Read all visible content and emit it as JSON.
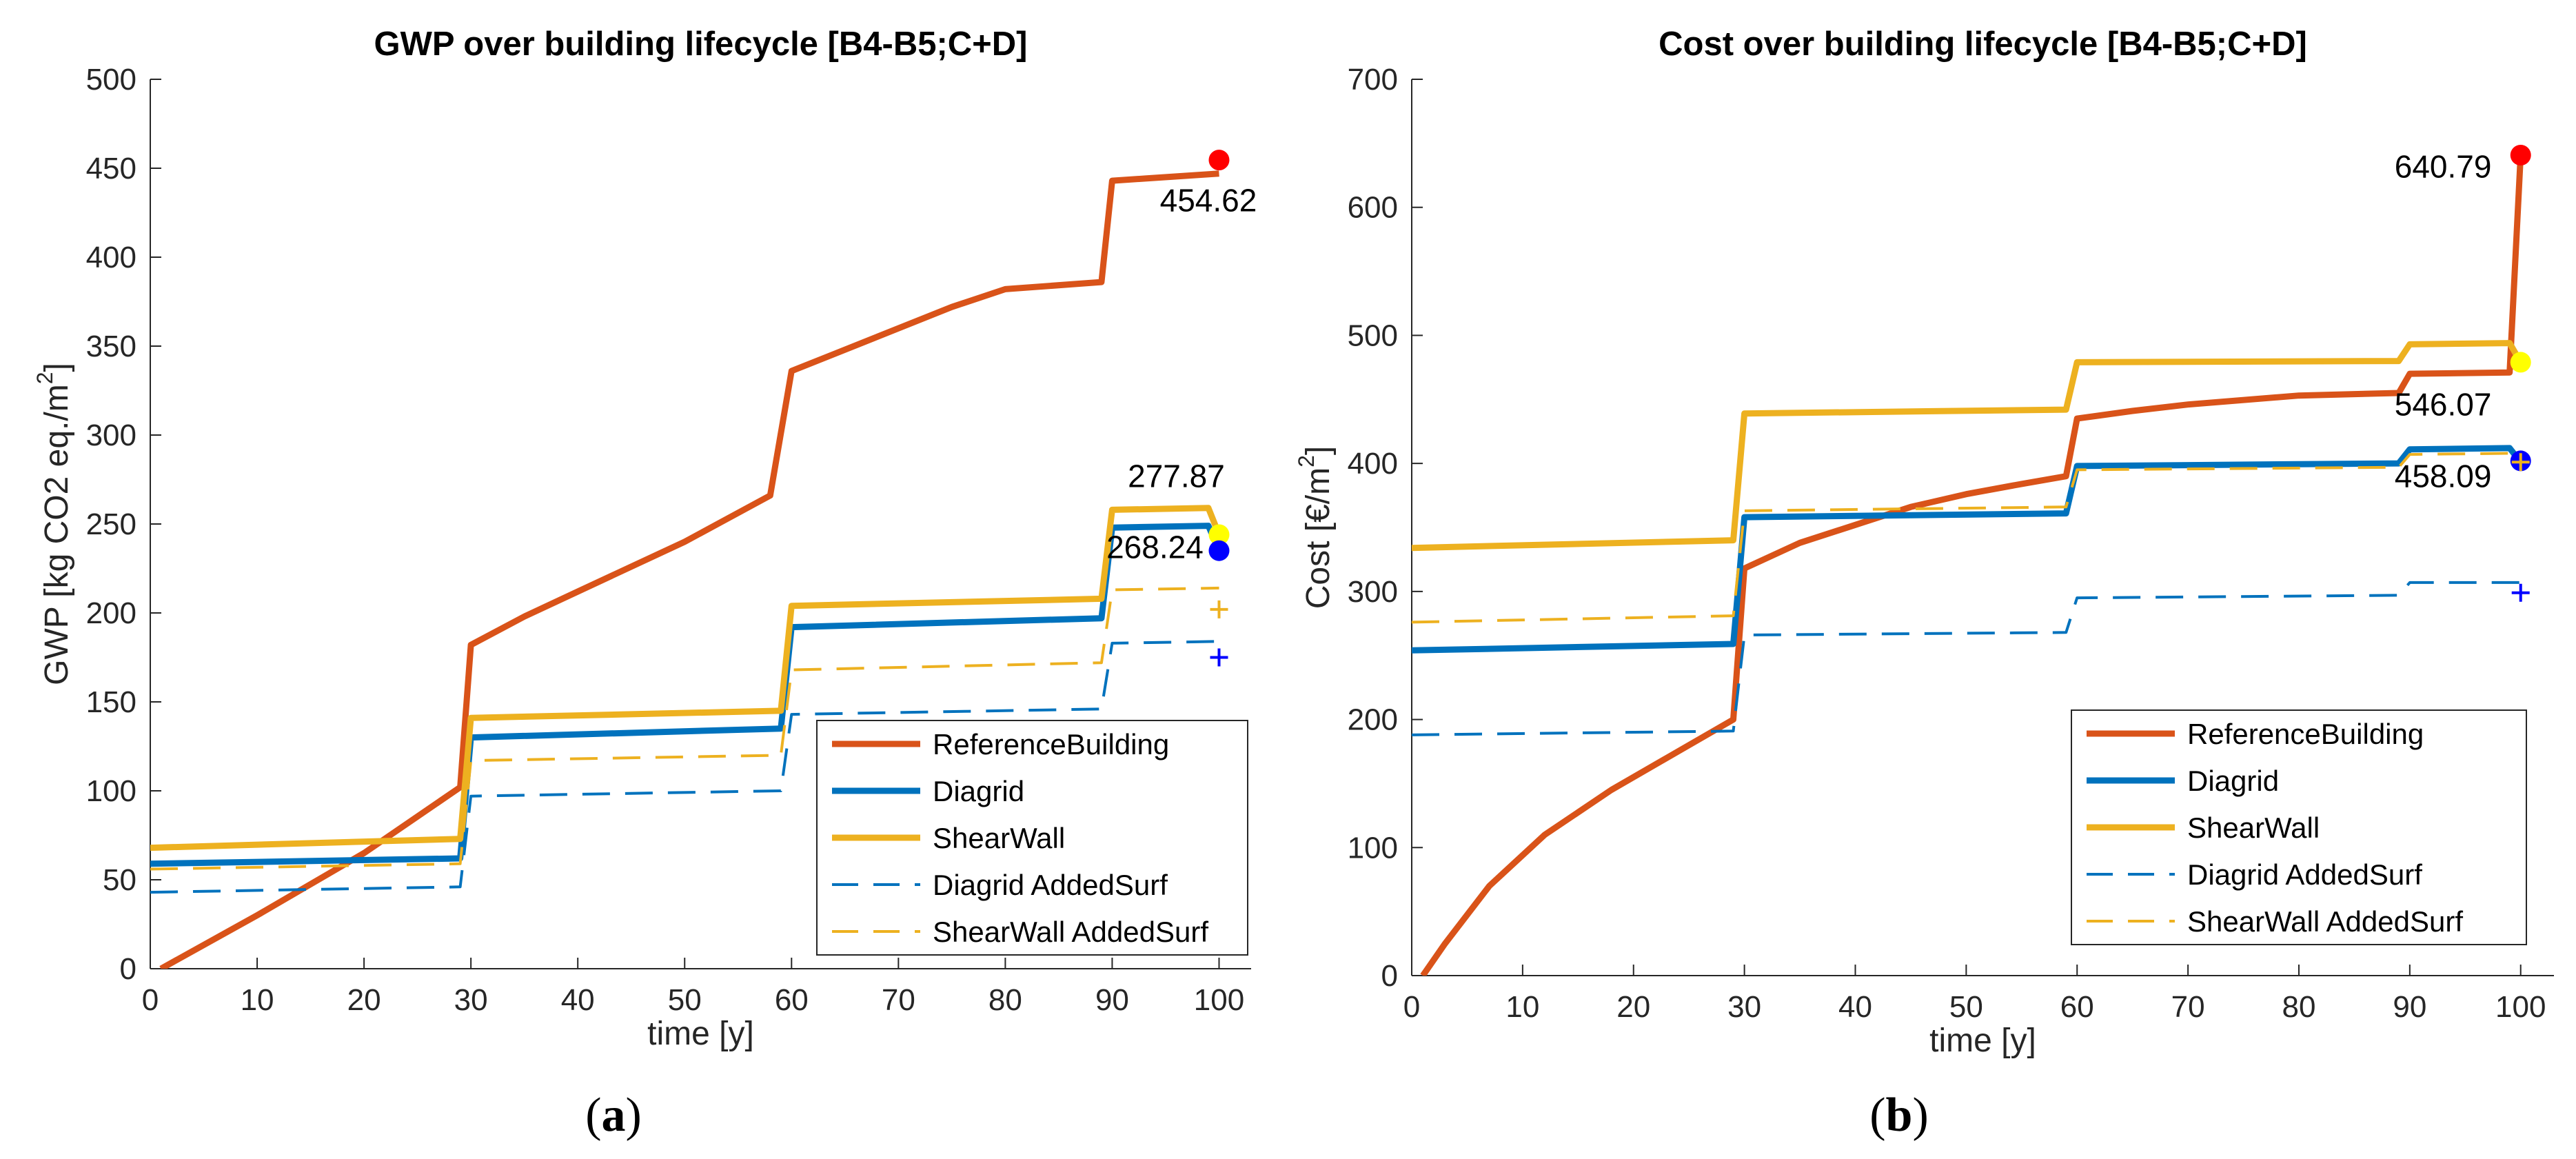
{
  "chart_data": [
    {
      "type": "line",
      "panel_label": "a",
      "title": "GWP over building lifecycle [B4-B5;C+D]",
      "xlabel": "time [y]",
      "ylabel": "GWP [kg CO2 eq./m",
      "ylabel_sup": "2",
      "ylabel_close": "]",
      "xlim": [
        0,
        103
      ],
      "ylim": [
        0,
        500
      ],
      "xticks": [
        0,
        10,
        20,
        30,
        40,
        50,
        60,
        70,
        80,
        90,
        100
      ],
      "yticks": [
        0,
        50,
        100,
        150,
        200,
        250,
        300,
        350,
        400,
        450,
        500
      ],
      "legend_position": "bottom-right",
      "series": [
        {
          "name": "ReferenceBuilding",
          "color": "#D95319",
          "dash": "solid",
          "points": [
            [
              1,
              0
            ],
            [
              10,
              30
            ],
            [
              20,
              65
            ],
            [
              29,
              102
            ],
            [
              30,
              182
            ],
            [
              35,
              198
            ],
            [
              40,
              212
            ],
            [
              50,
              240
            ],
            [
              58,
              266
            ],
            [
              60,
              336
            ],
            [
              65,
              348
            ],
            [
              70,
              360
            ],
            [
              75,
              372
            ],
            [
              80,
              382
            ],
            [
              89,
              386
            ],
            [
              90,
              443
            ],
            [
              100,
              447
            ]
          ]
        },
        {
          "name": "Diagrid",
          "color": "#0072BD",
          "dash": "solid",
          "points": [
            [
              0,
              59
            ],
            [
              29,
              62
            ],
            [
              30,
              130
            ],
            [
              59,
              135
            ],
            [
              60,
              192
            ],
            [
              89,
              197
            ],
            [
              90,
              248
            ],
            [
              99,
              249
            ],
            [
              100,
              235
            ]
          ]
        },
        {
          "name": "ShearWall",
          "color": "#EDB120",
          "dash": "solid",
          "points": [
            [
              0,
              68
            ],
            [
              29,
              73
            ],
            [
              30,
              141
            ],
            [
              59,
              145
            ],
            [
              60,
              204
            ],
            [
              89,
              208
            ],
            [
              90,
              258
            ],
            [
              99,
              259
            ],
            [
              100,
              244
            ]
          ]
        },
        {
          "name": "Diagrid AddedSurf",
          "color": "#0072BD",
          "dash": "dashed",
          "points": [
            [
              0,
              43
            ],
            [
              29,
              46
            ],
            [
              30,
              97
            ],
            [
              59,
              100
            ],
            [
              60,
              143
            ],
            [
              89,
              146
            ],
            [
              90,
              183
            ],
            [
              100,
              184
            ]
          ]
        },
        {
          "name": "ShearWall AddedSurf",
          "color": "#EDB120",
          "dash": "dashed",
          "points": [
            [
              0,
              56
            ],
            [
              29,
              59
            ],
            [
              30,
              117
            ],
            [
              59,
              120
            ],
            [
              60,
              168
            ],
            [
              89,
              172
            ],
            [
              90,
              213
            ],
            [
              100,
              214
            ]
          ]
        }
      ],
      "markers": [
        {
          "shape": "dot",
          "color": "#FF0000",
          "x": 100,
          "y": 454.62
        },
        {
          "shape": "dot",
          "color": "#FFFF00",
          "x": 100,
          "y": 244
        },
        {
          "shape": "dot",
          "color": "#0000FF",
          "x": 100,
          "y": 235
        },
        {
          "shape": "plus",
          "color": "#EDB120",
          "x": 100,
          "y": 202
        },
        {
          "shape": "plus",
          "color": "#0000FF",
          "x": 100,
          "y": 175
        }
      ],
      "annotations": [
        {
          "text": "454.62",
          "x": 99,
          "y": 432,
          "anchor": "middle"
        },
        {
          "text": "277.87",
          "x": 96,
          "y": 277,
          "anchor": "middle"
        },
        {
          "text": "268.24",
          "x": 94,
          "y": 237,
          "anchor": "middle"
        }
      ]
    },
    {
      "type": "line",
      "panel_label": "b",
      "title": "Cost over building lifecycle [B4-B5;C+D]",
      "xlabel": "time [y]",
      "ylabel": "Cost [€/m",
      "ylabel_sup": "2",
      "ylabel_close": "]",
      "xlim": [
        0,
        103
      ],
      "ylim": [
        0,
        700
      ],
      "xticks": [
        0,
        10,
        20,
        30,
        40,
        50,
        60,
        70,
        80,
        90,
        100
      ],
      "yticks": [
        0,
        100,
        200,
        300,
        400,
        500,
        600,
        700
      ],
      "legend_position": "bottom-right",
      "series": [
        {
          "name": "ReferenceBuilding",
          "color": "#D95319",
          "dash": "solid",
          "points": [
            [
              1,
              0
            ],
            [
              3,
              25
            ],
            [
              7,
              70
            ],
            [
              12,
              110
            ],
            [
              18,
              145
            ],
            [
              24,
              175
            ],
            [
              29,
              200
            ],
            [
              30,
              318
            ],
            [
              35,
              338
            ],
            [
              40,
              352
            ],
            [
              45,
              366
            ],
            [
              50,
              376
            ],
            [
              55,
              384
            ],
            [
              59,
              390
            ],
            [
              60,
              435
            ],
            [
              65,
              441
            ],
            [
              70,
              446
            ],
            [
              80,
              453
            ],
            [
              89,
              455
            ],
            [
              90,
              470
            ],
            [
              99,
              471
            ],
            [
              100,
              640.79
            ]
          ]
        },
        {
          "name": "Diagrid",
          "color": "#0072BD",
          "dash": "solid",
          "points": [
            [
              0,
              254
            ],
            [
              29,
              259
            ],
            [
              30,
              358
            ],
            [
              59,
              361
            ],
            [
              60,
              398
            ],
            [
              89,
              400
            ],
            [
              90,
              411
            ],
            [
              99,
              412
            ],
            [
              100,
              401
            ]
          ]
        },
        {
          "name": "ShearWall",
          "color": "#EDB120",
          "dash": "solid",
          "points": [
            [
              0,
              334
            ],
            [
              29,
              340
            ],
            [
              30,
              439
            ],
            [
              59,
              442
            ],
            [
              60,
              479
            ],
            [
              89,
              480
            ],
            [
              90,
              493
            ],
            [
              99,
              494
            ],
            [
              100,
              479
            ]
          ]
        },
        {
          "name": "Diagrid AddedSurf",
          "color": "#0072BD",
          "dash": "dashed",
          "points": [
            [
              0,
              188
            ],
            [
              29,
              191
            ],
            [
              30,
              266
            ],
            [
              59,
              268
            ],
            [
              60,
              295
            ],
            [
              89,
              297
            ],
            [
              90,
              307
            ],
            [
              100,
              307
            ]
          ]
        },
        {
          "name": "ShearWall AddedSurf",
          "color": "#EDB120",
          "dash": "dashed",
          "points": [
            [
              0,
              276
            ],
            [
              29,
              281
            ],
            [
              30,
              363
            ],
            [
              59,
              366
            ],
            [
              60,
              395
            ],
            [
              89,
              397
            ],
            [
              90,
              407
            ],
            [
              100,
              408
            ]
          ]
        }
      ],
      "markers": [
        {
          "shape": "dot",
          "color": "#FF0000",
          "x": 100,
          "y": 640.79
        },
        {
          "shape": "dot",
          "color": "#FFFF00",
          "x": 100,
          "y": 479
        },
        {
          "shape": "dot",
          "color": "#0000FF",
          "x": 100,
          "y": 402
        },
        {
          "shape": "plus",
          "color": "#EDB120",
          "x": 100,
          "y": 401
        },
        {
          "shape": "plus",
          "color": "#0000FF",
          "x": 100,
          "y": 299
        }
      ],
      "annotations": [
        {
          "text": "640.79",
          "x": 93,
          "y": 632,
          "anchor": "middle"
        },
        {
          "text": "546.07",
          "x": 93,
          "y": 446,
          "anchor": "middle"
        },
        {
          "text": "458.09",
          "x": 93,
          "y": 390,
          "anchor": "middle"
        }
      ]
    }
  ]
}
